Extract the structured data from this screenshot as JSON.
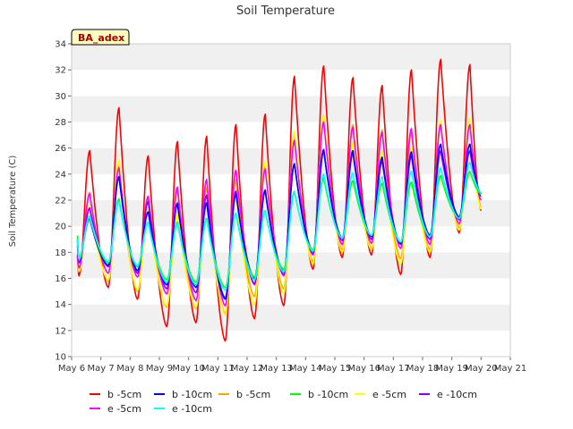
{
  "chart_data": {
    "type": "line",
    "title": "Soil Temperature",
    "ylabel": "Soil Temperature (C)",
    "xlabel": "",
    "badge": "BA_adex",
    "ylim": [
      10,
      34
    ],
    "yticks": [
      10,
      12,
      14,
      16,
      18,
      20,
      22,
      24,
      26,
      28,
      30,
      32,
      34
    ],
    "xlim": [
      6,
      21
    ],
    "xticks": [
      6,
      7,
      8,
      9,
      10,
      11,
      12,
      13,
      14,
      15,
      16,
      17,
      18,
      19,
      20,
      21
    ],
    "xtick_labels": [
      "May 6",
      "May 7",
      "May 8",
      "May 9",
      "May 10",
      "May 11",
      "May 12",
      "May 13",
      "May 14",
      "May 15",
      "May 16",
      "May 17",
      "May 18",
      "May 19",
      "May 20",
      "May 21"
    ],
    "grid": "horizontal bands",
    "legend_position": "bottom",
    "series": [
      {
        "name": "b -5cm",
        "color": "#ff0000",
        "mins": [
          16.2,
          15.3,
          14.4,
          12.3,
          12.6,
          11.2,
          12.9,
          13.9,
          16.7,
          17.6,
          17.8,
          16.3,
          17.6,
          19.5
        ],
        "maxs": [
          25.8,
          29.1,
          25.4,
          26.5,
          26.9,
          27.8,
          28.6,
          31.5,
          32.3,
          31.4,
          30.8,
          32.0,
          32.8,
          32.4
        ],
        "start": 17.8,
        "end": 21.2
      },
      {
        "name": "e -5cm",
        "color": "#ff00ff",
        "mins": [
          16.8,
          16.4,
          16.1,
          14.8,
          14.3,
          13.9,
          15.5,
          16.2,
          17.8,
          18.6,
          18.7,
          18.3,
          18.6,
          20.2
        ],
        "maxs": [
          22.5,
          24.5,
          22.3,
          23.0,
          23.6,
          24.3,
          24.4,
          26.6,
          28.0,
          27.6,
          27.2,
          27.5,
          27.8,
          27.8
        ],
        "start": 17.7,
        "end": 22.0
      },
      {
        "name": "b -10cm",
        "color": "#0000ff",
        "mins": [
          17.6,
          17.0,
          16.6,
          15.5,
          15.3,
          14.4,
          16.0,
          16.5,
          18.1,
          19.1,
          19.2,
          18.7,
          19.3,
          20.7
        ],
        "maxs": [
          20.6,
          23.8,
          21.1,
          21.7,
          21.8,
          22.5,
          22.7,
          24.8,
          25.8,
          25.8,
          25.3,
          25.7,
          26.3,
          26.3
        ],
        "start": 18.9,
        "end": 22.5
      },
      {
        "name": "e -10cm",
        "color": "#00ffff",
        "mins": [
          17.5,
          17.3,
          17.0,
          15.7,
          15.5,
          15.1,
          15.9,
          16.5,
          18.1,
          19.1,
          19.3,
          18.8,
          19.2,
          20.6
        ],
        "maxs": [
          20.8,
          21.9,
          20.3,
          20.2,
          20.5,
          21.0,
          21.2,
          22.7,
          24.0,
          24.1,
          23.8,
          24.2,
          24.5,
          24.9
        ],
        "start": 19.0,
        "end": 22.6
      },
      {
        "name": "b -5cm",
        "color": "#ffa500",
        "mins": [
          16.5,
          15.8,
          15.0,
          13.8,
          13.7,
          13.3,
          14.6,
          15.2,
          17.3,
          18.2,
          18.3,
          17.5,
          18.2,
          19.9
        ],
        "maxs": [
          22.6,
          24.9,
          22.3,
          22.8,
          23.0,
          23.6,
          24.7,
          27.1,
          28.5,
          27.8,
          27.4,
          27.2,
          27.8,
          27.8
        ],
        "start": 17.6,
        "end": 21.5
      },
      {
        "name": "b -10cm",
        "color": "#00ff00",
        "mins": [
          17.6,
          17.2,
          16.9,
          15.9,
          15.7,
          15.3,
          16.1,
          16.7,
          18.2,
          19.1,
          19.3,
          18.8,
          19.2,
          20.6
        ],
        "maxs": [
          20.7,
          22.1,
          20.3,
          20.3,
          20.6,
          21.0,
          21.2,
          22.6,
          23.7,
          23.5,
          23.3,
          23.4,
          23.9,
          24.2
        ],
        "start": 19.3,
        "end": 22.5
      },
      {
        "name": "e -5cm",
        "color": "#ffff00",
        "mins": [
          16.6,
          15.9,
          15.1,
          13.9,
          13.8,
          13.2,
          14.0,
          14.8,
          17.1,
          18.0,
          18.2,
          17.1,
          18.0,
          19.7
        ],
        "maxs": [
          21.6,
          25.1,
          21.4,
          21.0,
          22.5,
          22.5,
          25.0,
          27.3,
          28.5,
          26.5,
          25.8,
          26.0,
          28.1,
          28.3
        ],
        "start": 17.7,
        "end": 21.3
      },
      {
        "name": "e -10cm",
        "color": "#8800ff",
        "mins": [
          17.2,
          16.9,
          16.4,
          15.2,
          14.9,
          14.5,
          15.6,
          16.3,
          17.9,
          18.9,
          19.0,
          18.6,
          19.0,
          20.5
        ],
        "maxs": [
          21.4,
          23.8,
          21.9,
          21.8,
          22.4,
          22.7,
          22.8,
          24.8,
          25.9,
          25.6,
          25.0,
          25.4,
          25.8,
          25.8
        ],
        "start": 18.5,
        "end": 22.3
      }
    ]
  }
}
